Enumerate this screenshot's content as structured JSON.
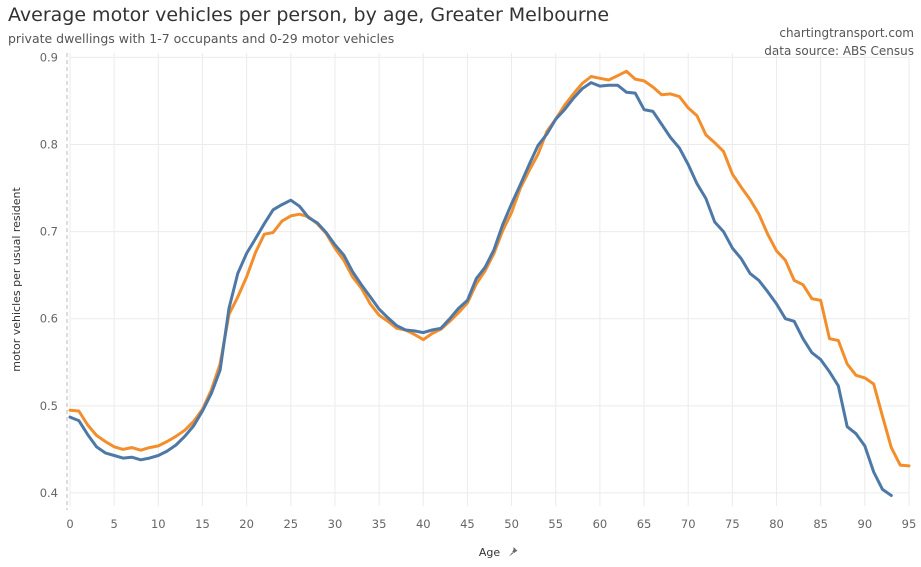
{
  "header": {
    "title": "Average motor vehicles per person, by age, Greater Melbourne",
    "subtitle": "private dwellings with 1-7 occupants and 0-29 motor vehicles",
    "credit_site": "chartingtransport.com",
    "credit_source": "data source: ABS Census"
  },
  "colors": {
    "series_blue": "#4e79a7",
    "series_orange": "#f28e2b",
    "grid": "#ebebeb"
  },
  "chart_data": {
    "type": "line",
    "title": "Average motor vehicles per person, by age, Greater Melbourne",
    "subtitle": "private dwellings with 1-7 occupants and 0-29 motor vehicles",
    "xlabel": "Age",
    "ylabel": "motor vehicles per usual resident",
    "xlim": [
      0,
      95
    ],
    "ylim": [
      0.385,
      0.905
    ],
    "x_ticks": [
      0,
      5,
      10,
      15,
      20,
      25,
      30,
      35,
      40,
      45,
      50,
      55,
      60,
      65,
      70,
      75,
      80,
      85,
      90,
      95
    ],
    "y_ticks": [
      0.4,
      0.5,
      0.6,
      0.7,
      0.8,
      0.9
    ],
    "y_tick_labels": [
      "0.4",
      "0.5",
      "0.6",
      "0.7",
      "0.8",
      "0.9"
    ],
    "legend": "none",
    "series": [
      {
        "name": "series-orange",
        "color": "#f28e2b",
        "x": [
          0,
          1,
          2,
          3,
          4,
          5,
          6,
          7,
          8,
          9,
          10,
          11,
          12,
          13,
          14,
          15,
          16,
          17,
          18,
          19,
          20,
          21,
          22,
          23,
          24,
          25,
          26,
          27,
          28,
          29,
          30,
          31,
          32,
          33,
          34,
          35,
          36,
          37,
          38,
          39,
          40,
          41,
          42,
          43,
          44,
          45,
          46,
          47,
          48,
          49,
          50,
          51,
          52,
          53,
          54,
          55,
          56,
          57,
          58,
          59,
          60,
          61,
          62,
          63,
          64,
          65,
          66,
          67,
          68,
          69,
          70,
          71,
          72,
          73,
          74,
          75,
          76,
          77,
          78,
          79,
          80,
          81,
          82,
          83,
          84,
          85,
          86,
          87,
          88,
          89,
          90,
          91,
          92,
          93,
          94,
          95
        ],
        "values": [
          0.495,
          0.494,
          0.478,
          0.466,
          0.459,
          0.453,
          0.45,
          0.452,
          0.449,
          0.452,
          0.454,
          0.459,
          0.465,
          0.472,
          0.482,
          0.496,
          0.518,
          0.548,
          0.605,
          0.625,
          0.648,
          0.676,
          0.697,
          0.699,
          0.712,
          0.718,
          0.72,
          0.717,
          0.709,
          0.698,
          0.681,
          0.667,
          0.648,
          0.635,
          0.617,
          0.604,
          0.597,
          0.589,
          0.587,
          0.582,
          0.576,
          0.583,
          0.588,
          0.597,
          0.607,
          0.618,
          0.64,
          0.655,
          0.675,
          0.701,
          0.722,
          0.75,
          0.77,
          0.789,
          0.815,
          0.829,
          0.845,
          0.858,
          0.87,
          0.878,
          0.876,
          0.874,
          0.879,
          0.884,
          0.875,
          0.873,
          0.866,
          0.857,
          0.858,
          0.855,
          0.842,
          0.833,
          0.811,
          0.802,
          0.792,
          0.766,
          0.751,
          0.737,
          0.72,
          0.697,
          0.678,
          0.667,
          0.644,
          0.639,
          0.623,
          0.621,
          0.577,
          0.575,
          0.548,
          0.535,
          0.532,
          0.525,
          0.488,
          0.452,
          0.432,
          0.431
        ]
      },
      {
        "name": "series-blue",
        "color": "#4e79a7",
        "x": [
          0,
          1,
          2,
          3,
          4,
          5,
          6,
          7,
          8,
          9,
          10,
          11,
          12,
          13,
          14,
          15,
          16,
          17,
          18,
          19,
          20,
          21,
          22,
          23,
          24,
          25,
          26,
          27,
          28,
          29,
          30,
          31,
          32,
          33,
          34,
          35,
          36,
          37,
          38,
          39,
          40,
          41,
          42,
          43,
          44,
          45,
          46,
          47,
          48,
          49,
          50,
          51,
          52,
          53,
          54,
          55,
          56,
          57,
          58,
          59,
          60,
          61,
          62,
          63,
          64,
          65,
          66,
          67,
          68,
          69,
          70,
          71,
          72,
          73,
          74,
          75,
          76,
          77,
          78,
          79,
          80,
          81,
          82,
          83,
          84,
          85,
          86,
          87,
          88,
          89,
          90,
          91,
          92,
          93
        ],
        "values": [
          0.487,
          0.483,
          0.467,
          0.453,
          0.446,
          0.443,
          0.44,
          0.441,
          0.438,
          0.44,
          0.443,
          0.448,
          0.455,
          0.465,
          0.477,
          0.494,
          0.514,
          0.541,
          0.612,
          0.652,
          0.675,
          0.692,
          0.709,
          0.725,
          0.731,
          0.736,
          0.729,
          0.716,
          0.71,
          0.699,
          0.685,
          0.673,
          0.654,
          0.639,
          0.625,
          0.611,
          0.601,
          0.592,
          0.587,
          0.586,
          0.584,
          0.587,
          0.589,
          0.6,
          0.612,
          0.621,
          0.646,
          0.659,
          0.679,
          0.708,
          0.732,
          0.754,
          0.777,
          0.799,
          0.812,
          0.829,
          0.84,
          0.853,
          0.864,
          0.871,
          0.867,
          0.868,
          0.868,
          0.86,
          0.859,
          0.84,
          0.838,
          0.823,
          0.808,
          0.796,
          0.777,
          0.755,
          0.738,
          0.711,
          0.7,
          0.681,
          0.669,
          0.652,
          0.644,
          0.631,
          0.617,
          0.6,
          0.597,
          0.577,
          0.561,
          0.553,
          0.539,
          0.523,
          0.476,
          0.468,
          0.454,
          0.424,
          0.404,
          0.397
        ]
      }
    ]
  }
}
